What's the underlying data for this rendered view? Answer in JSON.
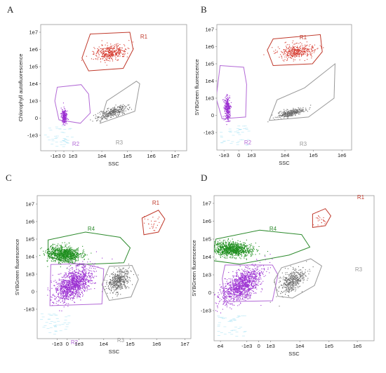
{
  "chart_data": [
    {
      "type": "scatter",
      "panel_label": "A",
      "xlabel": "SSC",
      "ylabel": "Chlorophyll autofluorescence",
      "x_ticks": [
        "-1e3",
        "0",
        "1e3",
        "1e4",
        "1e5",
        "1e6",
        "1e7"
      ],
      "y_ticks": [
        "1e7",
        "1e6",
        "1e5",
        "1e4",
        "1e3",
        "0",
        "-1e3"
      ],
      "gates": [
        {
          "name": "R1",
          "color": "#c0392b",
          "points": [
            [
              1.6,
              0.1
            ],
            [
              4.0,
              0.0
            ],
            [
              4.2,
              1.0
            ],
            [
              3.6,
              2.1
            ],
            [
              1.5,
              2.25
            ],
            [
              1.1,
              1.5
            ]
          ],
          "dots": {
            "count": 380,
            "cx": 2.8,
            "cy": 1.15,
            "sx": 0.5,
            "sy": 0.22,
            "tilt": -0.12,
            "color": "#d63b2f"
          }
        },
        {
          "name": "R2",
          "color": "#b36ad6",
          "points": [
            [
              -0.4,
              3.2
            ],
            [
              1.05,
              3.05
            ],
            [
              1.5,
              3.6
            ],
            [
              1.6,
              4.7
            ],
            [
              1.0,
              5.3
            ],
            [
              -0.3,
              5.1
            ],
            [
              -0.55,
              4.0
            ]
          ],
          "dots": {
            "count": 260,
            "cx": 0.0,
            "cy": 4.9,
            "sx": 0.08,
            "sy": 0.2,
            "tilt": 0,
            "color": "#9b2fd1"
          }
        },
        {
          "name": "R3",
          "color": "#999999",
          "points": [
            [
              2.2,
              5.3
            ],
            [
              4.3,
              4.6
            ],
            [
              4.6,
              3.0
            ],
            [
              4.4,
              2.85
            ],
            [
              2.6,
              4.0
            ]
          ],
          "dots": {
            "count": 320,
            "cx": 2.9,
            "cy": 4.65,
            "sx": 0.45,
            "sy": 0.14,
            "tilt": -0.3,
            "color": "#6a6a6a"
          }
        }
      ]
    },
    {
      "type": "scatter",
      "panel_label": "B",
      "xlabel": "SSC",
      "ylabel": "SYBGreen fluorescence",
      "x_ticks": [
        "-1e3",
        "0",
        "1e3",
        "1e4",
        "1e5",
        "1e6"
      ],
      "y_ticks": [
        "1e7",
        "1e6",
        "1e5",
        "1e4",
        "1e3",
        "0",
        "-1e3"
      ],
      "gates": [
        {
          "name": "R1",
          "color": "#c0392b",
          "points": [
            [
              2.4,
              0.55
            ],
            [
              4.8,
              0.3
            ],
            [
              4.9,
              1.3
            ],
            [
              4.4,
              2.0
            ],
            [
              2.4,
              2.1
            ],
            [
              2.1,
              1.2
            ]
          ],
          "dots": {
            "count": 380,
            "cx": 3.6,
            "cy": 1.25,
            "sx": 0.45,
            "sy": 0.2,
            "tilt": -0.1,
            "color": "#d63b2f"
          }
        },
        {
          "name": "R2",
          "color": "#b36ad6",
          "points": [
            [
              -0.3,
              2.1
            ],
            [
              0.9,
              2.2
            ],
            [
              1.05,
              3.2
            ],
            [
              1.0,
              5.1
            ],
            [
              -0.2,
              5.2
            ],
            [
              -0.5,
              4.0
            ]
          ],
          "dots": {
            "count": 300,
            "cx": 0.05,
            "cy": 4.6,
            "sx": 0.07,
            "sy": 0.35,
            "tilt": 0,
            "color": "#9b2fd1"
          }
        },
        {
          "name": "R3",
          "color": "#999999",
          "points": [
            [
              2.2,
              5.3
            ],
            [
              4.2,
              5.1
            ],
            [
              5.5,
              4.0
            ],
            [
              5.55,
              2.0
            ],
            [
              4.0,
              3.4
            ],
            [
              2.6,
              4.1
            ]
          ],
          "dots": {
            "count": 320,
            "cx": 3.3,
            "cy": 4.85,
            "sx": 0.35,
            "sy": 0.1,
            "tilt": -0.25,
            "color": "#6a6a6a"
          }
        }
      ]
    },
    {
      "type": "scatter",
      "panel_label": "C",
      "xlabel": "SSC",
      "ylabel": "SYBGreen fluorescence",
      "x_ticks": [
        "-1e3",
        "0",
        "1e3",
        "1e4",
        "1e5",
        "1e6",
        "1e7"
      ],
      "y_ticks": [
        "1e7",
        "1e6",
        "1e5",
        "1e4",
        "1e3",
        "0",
        "-1e3"
      ],
      "gates": [
        {
          "name": "R1",
          "color": "#c0392b",
          "points": [
            [
              4.4,
              0.8
            ],
            [
              5.3,
              0.35
            ],
            [
              5.65,
              0.85
            ],
            [
              5.3,
              1.6
            ],
            [
              4.5,
              1.75
            ]
          ],
          "dots": {
            "count": 25,
            "cx": 5.0,
            "cy": 1.1,
            "sx": 0.25,
            "sy": 0.25,
            "tilt": 0,
            "color": "#d63b2f"
          }
        },
        {
          "name": "R4",
          "color": "#2e8b2e",
          "points": [
            [
              -0.75,
              2.05
            ],
            [
              1.3,
              1.6
            ],
            [
              3.2,
              1.9
            ],
            [
              3.75,
              2.5
            ],
            [
              3.4,
              3.35
            ],
            [
              0.9,
              3.45
            ],
            [
              -0.75,
              3.0
            ]
          ],
          "dots": {
            "count": 1000,
            "cx": 0.1,
            "cy": 2.85,
            "sx": 0.45,
            "sy": 0.22,
            "tilt": 0.1,
            "color": "#1f8f1f"
          }
        },
        {
          "name": "R2",
          "color": "#b36ad6",
          "points": [
            [
              -0.6,
              3.45
            ],
            [
              1.2,
              3.4
            ],
            [
              2.3,
              3.7
            ],
            [
              2.2,
              5.7
            ],
            [
              -0.65,
              5.8
            ]
          ],
          "dots": {
            "count": 1300,
            "cx": 0.6,
            "cy": 4.55,
            "sx": 0.5,
            "sy": 0.4,
            "tilt": -0.5,
            "color": "#9b2fd1"
          }
        },
        {
          "name": "R3",
          "color": "#999999",
          "points": [
            [
              2.6,
              3.55
            ],
            [
              3.85,
              3.5
            ],
            [
              4.2,
              4.3
            ],
            [
              3.8,
              5.3
            ],
            [
              2.6,
              5.5
            ],
            [
              2.2,
              4.6
            ]
          ],
          "dots": {
            "count": 450,
            "cx": 3.1,
            "cy": 4.35,
            "sx": 0.3,
            "sy": 0.3,
            "tilt": -0.4,
            "color": "#6a6a6a"
          }
        }
      ]
    },
    {
      "type": "scatter",
      "panel_label": "D",
      "xlabel": "SSC",
      "ylabel": "SYBGreen fluorescence",
      "x_ticks": [
        "e4",
        "-1e3",
        "0",
        "1e3",
        "1e4",
        "1e5",
        "1e6"
      ],
      "y_ticks": [
        "1e7",
        "1e6",
        "1e5",
        "1e4",
        "1e3",
        "0",
        "-1e3"
      ],
      "gates": [
        {
          "name": "R1",
          "color": "#c0392b",
          "points": [
            [
              4.9,
              0.6
            ],
            [
              5.6,
              0.3
            ],
            [
              5.9,
              0.7
            ],
            [
              5.6,
              1.25
            ],
            [
              4.9,
              1.35
            ]
          ],
          "dots": {
            "count": 22,
            "cx": 5.35,
            "cy": 0.85,
            "sx": 0.2,
            "sy": 0.2,
            "tilt": 0,
            "color": "#d63b2f"
          }
        },
        {
          "name": "R4",
          "color": "#2e8b2e",
          "points": [
            [
              -0.4,
              2.0
            ],
            [
              2.0,
              1.5
            ],
            [
              4.3,
              1.75
            ],
            [
              4.75,
              2.45
            ],
            [
              3.6,
              2.9
            ],
            [
              0.9,
              3.4
            ],
            [
              -0.6,
              3.2
            ]
          ],
          "dots": {
            "count": 1000,
            "cx": 0.45,
            "cy": 2.55,
            "sx": 0.55,
            "sy": 0.2,
            "tilt": 0.05,
            "color": "#1f8f1f"
          }
        },
        {
          "name": "R2",
          "color": "#b36ad6",
          "points": [
            [
              0.1,
              3.45
            ],
            [
              2.7,
              3.45
            ],
            [
              3.0,
              4.0
            ],
            [
              2.7,
              5.45
            ],
            [
              0.1,
              5.5
            ],
            [
              -0.05,
              4.2
            ]
          ],
          "dots": {
            "count": 1200,
            "cx": 1.0,
            "cy": 4.55,
            "sx": 0.55,
            "sy": 0.4,
            "tilt": -0.55,
            "color": "#9b2fd1"
          }
        },
        {
          "name": "R3",
          "color": "#999999",
          "points": [
            [
              3.2,
              3.6
            ],
            [
              4.8,
              3.1
            ],
            [
              5.4,
              3.5
            ],
            [
              5.0,
              4.6
            ],
            [
              3.8,
              5.3
            ],
            [
              3.0,
              5.2
            ],
            [
              2.8,
              4.3
            ]
          ],
          "dots": {
            "count": 420,
            "cx": 3.75,
            "cy": 4.35,
            "sx": 0.35,
            "sy": 0.3,
            "tilt": -0.45,
            "color": "#6a6a6a"
          }
        }
      ]
    }
  ]
}
